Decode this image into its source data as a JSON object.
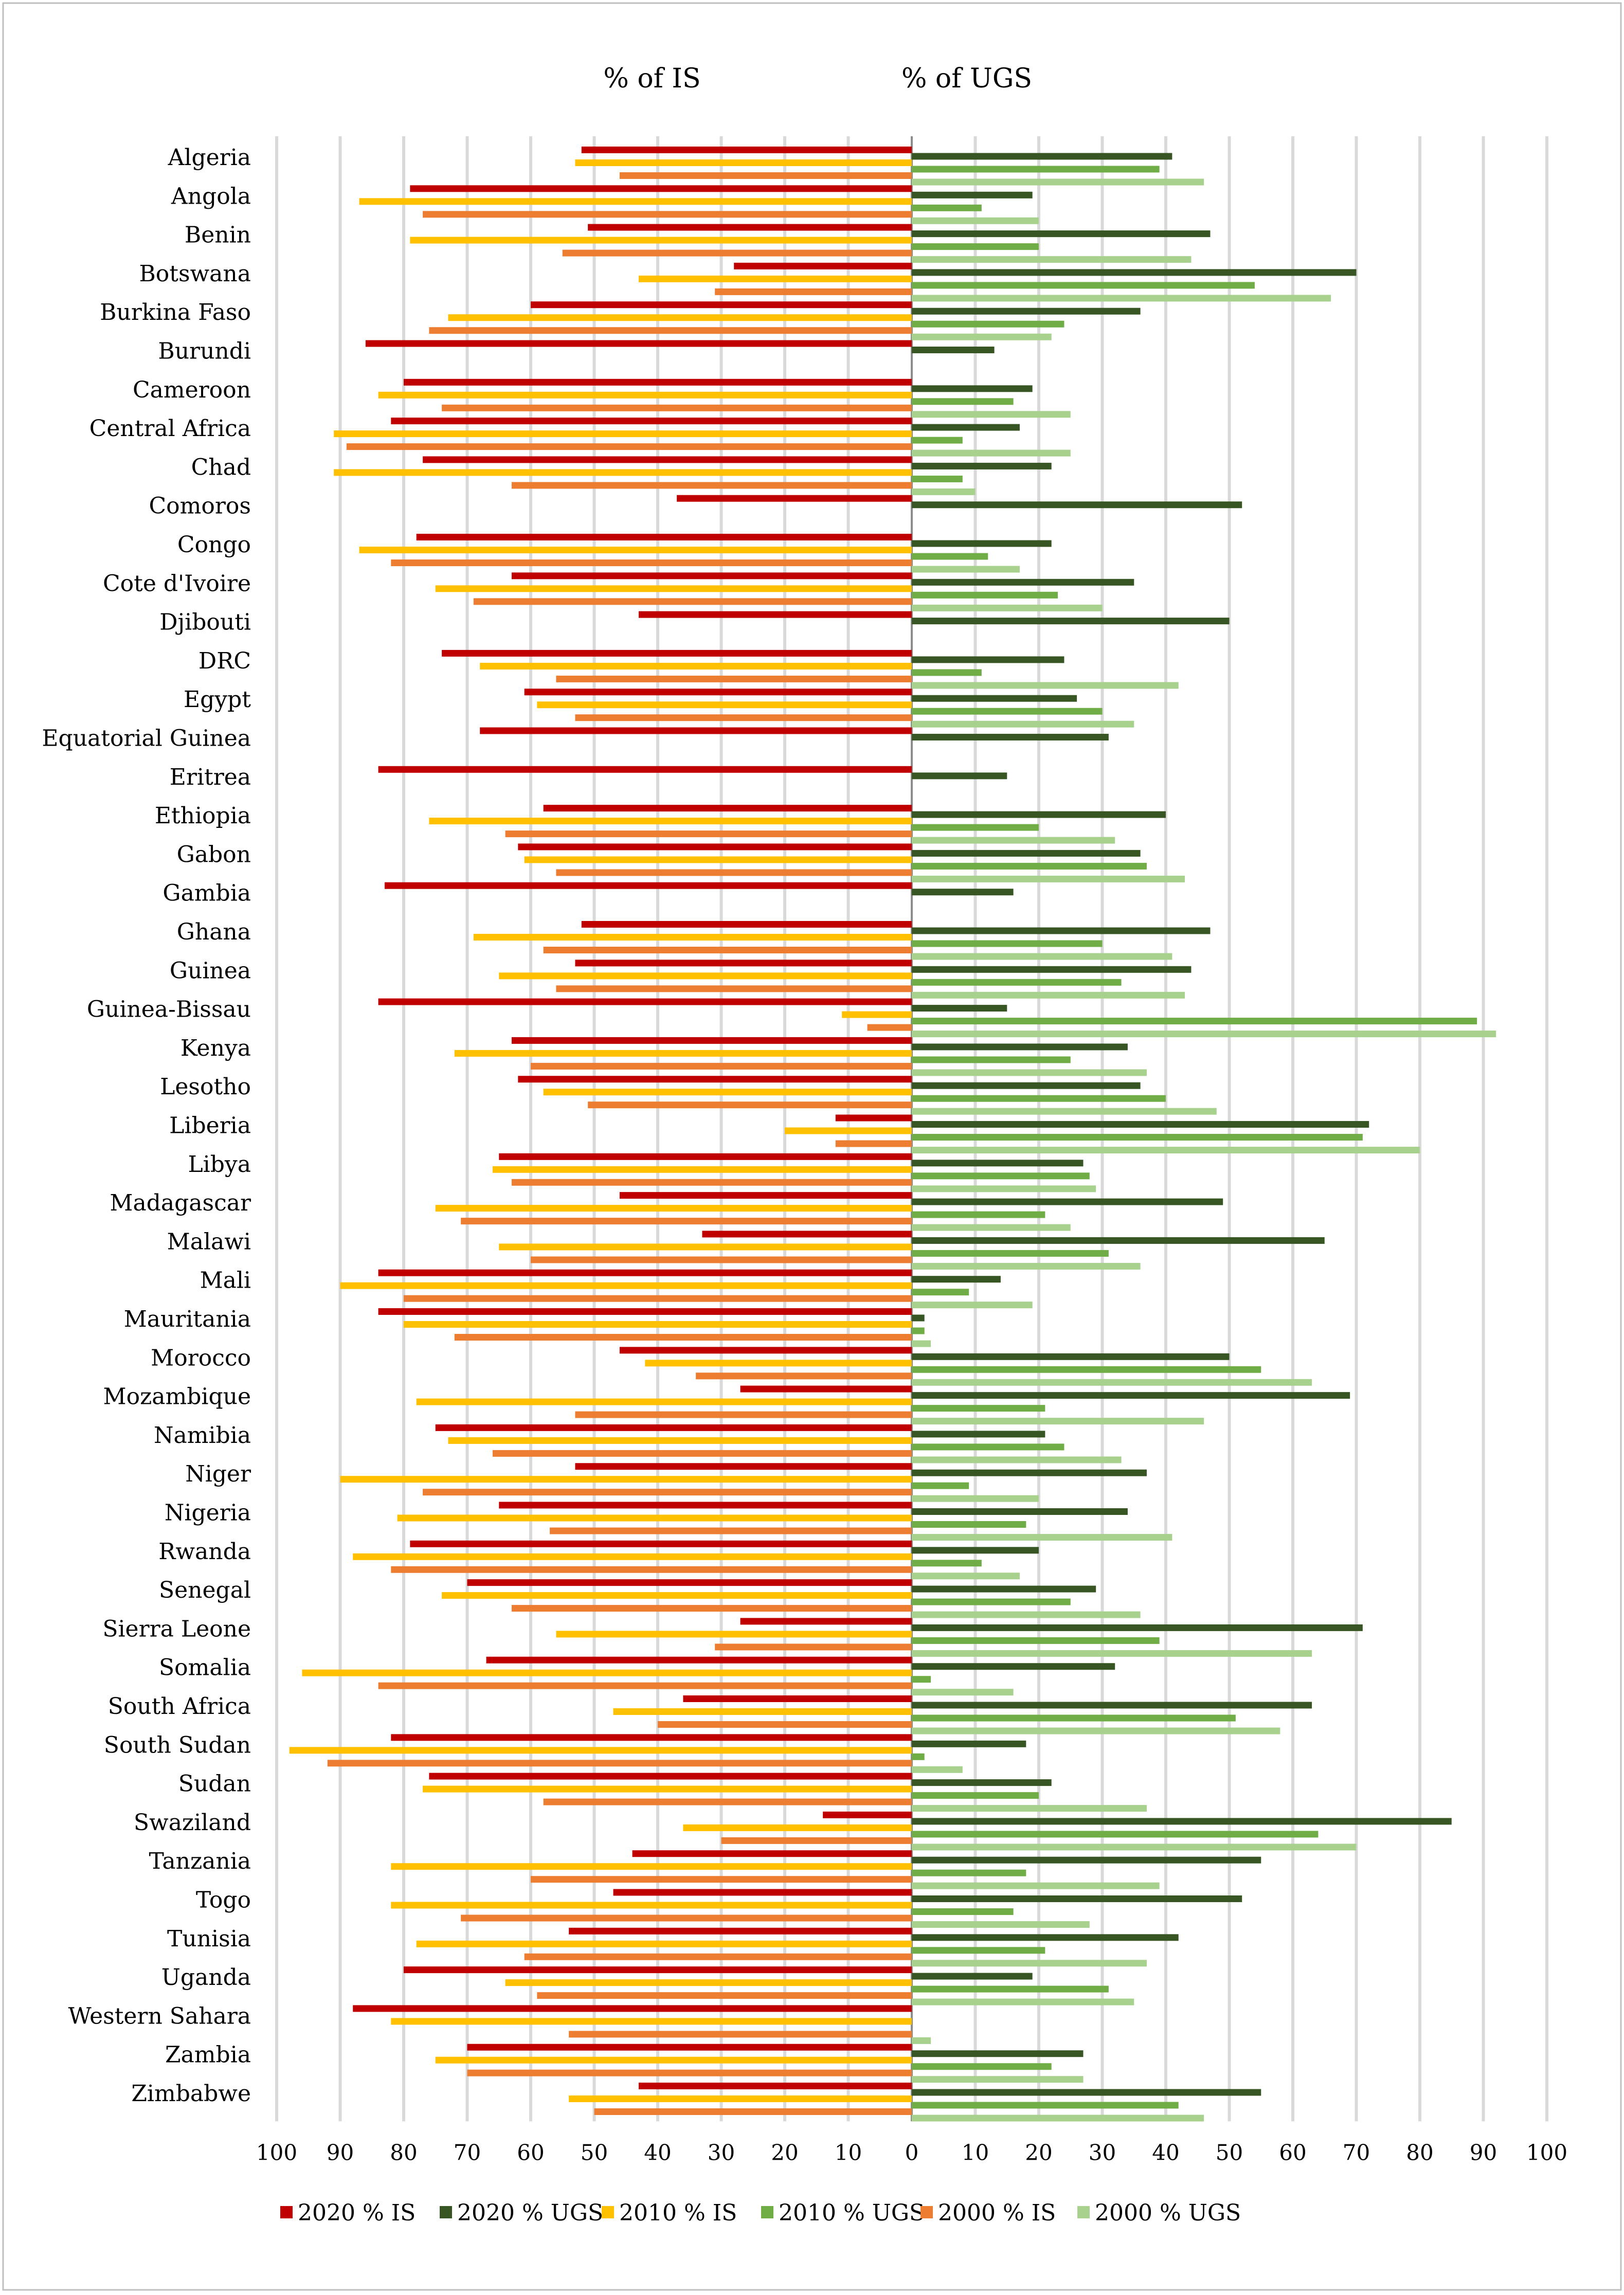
{
  "chart_data": {
    "type": "bar",
    "orientation": "horizontal-diverging",
    "headers": {
      "left": "% of IS",
      "right": "% of UGS"
    },
    "categories": [
      "Algeria",
      "Angola",
      "Benin",
      "Botswana",
      "Burkina Faso",
      "Burundi",
      "Cameroon",
      "Central Africa",
      "Chad",
      "Comoros",
      "Congo",
      "Cote d'Ivoire",
      "Djibouti",
      "DRC",
      "Egypt",
      "Equatorial Guinea",
      "Eritrea",
      "Ethiopia",
      "Gabon",
      "Gambia",
      "Ghana",
      "Guinea",
      "Guinea-Bissau",
      "Kenya",
      "Lesotho",
      "Liberia",
      "Libya",
      "Madagascar",
      "Malawi",
      "Mali",
      "Mauritania",
      "Morocco",
      "Mozambique",
      "Namibia",
      "Niger",
      "Nigeria",
      "Rwanda",
      "Senegal",
      "Sierra Leone",
      "Somalia",
      "South Africa",
      "South Sudan",
      "Sudan",
      "Swaziland",
      "Tanzania",
      "Togo",
      "Tunisia",
      "Uganda",
      "Western Sahara",
      "Zambia",
      "Zimbabwe"
    ],
    "left_ticks": [
      "100",
      "90",
      "80",
      "70",
      "60",
      "50",
      "40",
      "30",
      "20",
      "10",
      "0"
    ],
    "right_ticks": [
      "0",
      "10",
      "20",
      "30",
      "40",
      "50",
      "60",
      "70",
      "80",
      "90",
      "100"
    ],
    "xlim_left": [
      100,
      0
    ],
    "xlim_right": [
      0,
      100
    ],
    "grid": "vertical",
    "legend_position": "bottom",
    "series": [
      {
        "name": "2020 %  IS",
        "side": "left",
        "color": "#c00000",
        "values": [
          52,
          79,
          51,
          28,
          60,
          86,
          80,
          82,
          77,
          37,
          78,
          63,
          43,
          74,
          61,
          68,
          84,
          58,
          62,
          83,
          52,
          53,
          84,
          63,
          62,
          12,
          65,
          46,
          33,
          84,
          84,
          46,
          27,
          75,
          53,
          65,
          79,
          70,
          27,
          67,
          36,
          82,
          76,
          14,
          44,
          47,
          54,
          80,
          88,
          70,
          43
        ]
      },
      {
        "name": "2020 % UGS",
        "side": "right",
        "color": "#375623",
        "values": [
          41,
          19,
          47,
          70,
          36,
          13,
          19,
          17,
          22,
          52,
          22,
          35,
          50,
          24,
          26,
          31,
          15,
          40,
          36,
          16,
          47,
          44,
          15,
          34,
          36,
          72,
          27,
          49,
          65,
          14,
          2,
          50,
          69,
          21,
          37,
          34,
          20,
          29,
          71,
          32,
          63,
          18,
          22,
          85,
          55,
          52,
          42,
          19,
          0,
          27,
          55
        ]
      },
      {
        "name": "2010 %  IS",
        "side": "left",
        "color": "#ffc000",
        "values": [
          53,
          87,
          79,
          43,
          73,
          null,
          84,
          91,
          91,
          null,
          87,
          75,
          null,
          68,
          59,
          null,
          null,
          76,
          61,
          null,
          69,
          65,
          11,
          72,
          58,
          20,
          66,
          75,
          65,
          90,
          80,
          42,
          78,
          73,
          90,
          81,
          88,
          74,
          56,
          96,
          47,
          98,
          77,
          36,
          82,
          82,
          78,
          64,
          82,
          75,
          54
        ]
      },
      {
        "name": "2010 % UGS",
        "side": "right",
        "color": "#70ad47",
        "values": [
          39,
          11,
          20,
          54,
          24,
          null,
          16,
          8,
          8,
          null,
          12,
          23,
          null,
          11,
          30,
          null,
          null,
          20,
          37,
          null,
          30,
          33,
          89,
          25,
          40,
          71,
          28,
          21,
          31,
          9,
          2,
          55,
          21,
          24,
          9,
          18,
          11,
          25,
          39,
          3,
          51,
          2,
          20,
          64,
          18,
          16,
          21,
          31,
          0,
          22,
          42
        ]
      },
      {
        "name": "2000 %  IS",
        "side": "left",
        "color": "#ed7d31",
        "values": [
          46,
          77,
          55,
          31,
          76,
          null,
          74,
          89,
          63,
          null,
          82,
          69,
          null,
          56,
          53,
          null,
          null,
          64,
          56,
          null,
          58,
          56,
          7,
          60,
          51,
          12,
          63,
          71,
          60,
          80,
          72,
          34,
          53,
          66,
          77,
          57,
          82,
          63,
          31,
          84,
          40,
          92,
          58,
          30,
          60,
          71,
          61,
          59,
          54,
          70,
          50
        ]
      },
      {
        "name": "2000 % UGS",
        "side": "right",
        "color": "#a9d18e",
        "values": [
          46,
          20,
          44,
          66,
          22,
          null,
          25,
          25,
          10,
          null,
          17,
          30,
          null,
          42,
          35,
          null,
          null,
          32,
          43,
          null,
          41,
          43,
          92,
          37,
          48,
          80,
          29,
          25,
          36,
          19,
          3,
          63,
          46,
          33,
          20,
          41,
          17,
          36,
          63,
          16,
          58,
          8,
          37,
          70,
          39,
          28,
          37,
          35,
          3,
          27,
          46
        ]
      }
    ]
  }
}
